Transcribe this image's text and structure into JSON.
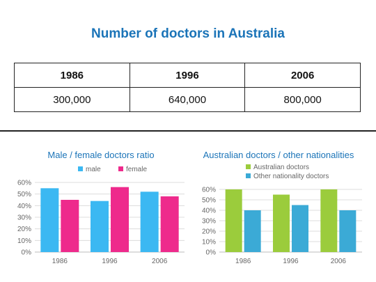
{
  "page": {
    "title": "Number of doctors in Australia",
    "title_color": "#1b74b8"
  },
  "table": {
    "headers": [
      "1986",
      "1996",
      "2006"
    ],
    "values": [
      "300,000",
      "640,000",
      "800,000"
    ]
  },
  "chart_data": [
    {
      "type": "bar",
      "title": "Male / female doctors ratio",
      "title_color": "#1b74b8",
      "categories": [
        "1986",
        "1996",
        "2006"
      ],
      "series": [
        {
          "name": "male",
          "values": [
            55,
            44,
            52
          ],
          "color": "#3bb8f2"
        },
        {
          "name": "female",
          "values": [
            45,
            56,
            48
          ],
          "color": "#ee2a8c"
        }
      ],
      "yticks": [
        "0%",
        "10%",
        "20%",
        "30%",
        "40%",
        "50%",
        "60%"
      ],
      "ylim": [
        0,
        60
      ],
      "grid": true,
      "legend": "top"
    },
    {
      "type": "bar",
      "title": "Australian doctors / other nationalities",
      "title_color": "#1b74b8",
      "categories": [
        "1986",
        "1996",
        "2006"
      ],
      "series": [
        {
          "name": "Australian doctors",
          "values": [
            60,
            55,
            60
          ],
          "color": "#9bcc3c"
        },
        {
          "name": "Other nationality doctors",
          "values": [
            40,
            45,
            40
          ],
          "color": "#3baad6"
        }
      ],
      "yticks": [
        "0%",
        "10%",
        "20%",
        "30%",
        "40%",
        "50%",
        "60%"
      ],
      "ylim": [
        0,
        60
      ],
      "grid": true,
      "legend": "top"
    }
  ]
}
